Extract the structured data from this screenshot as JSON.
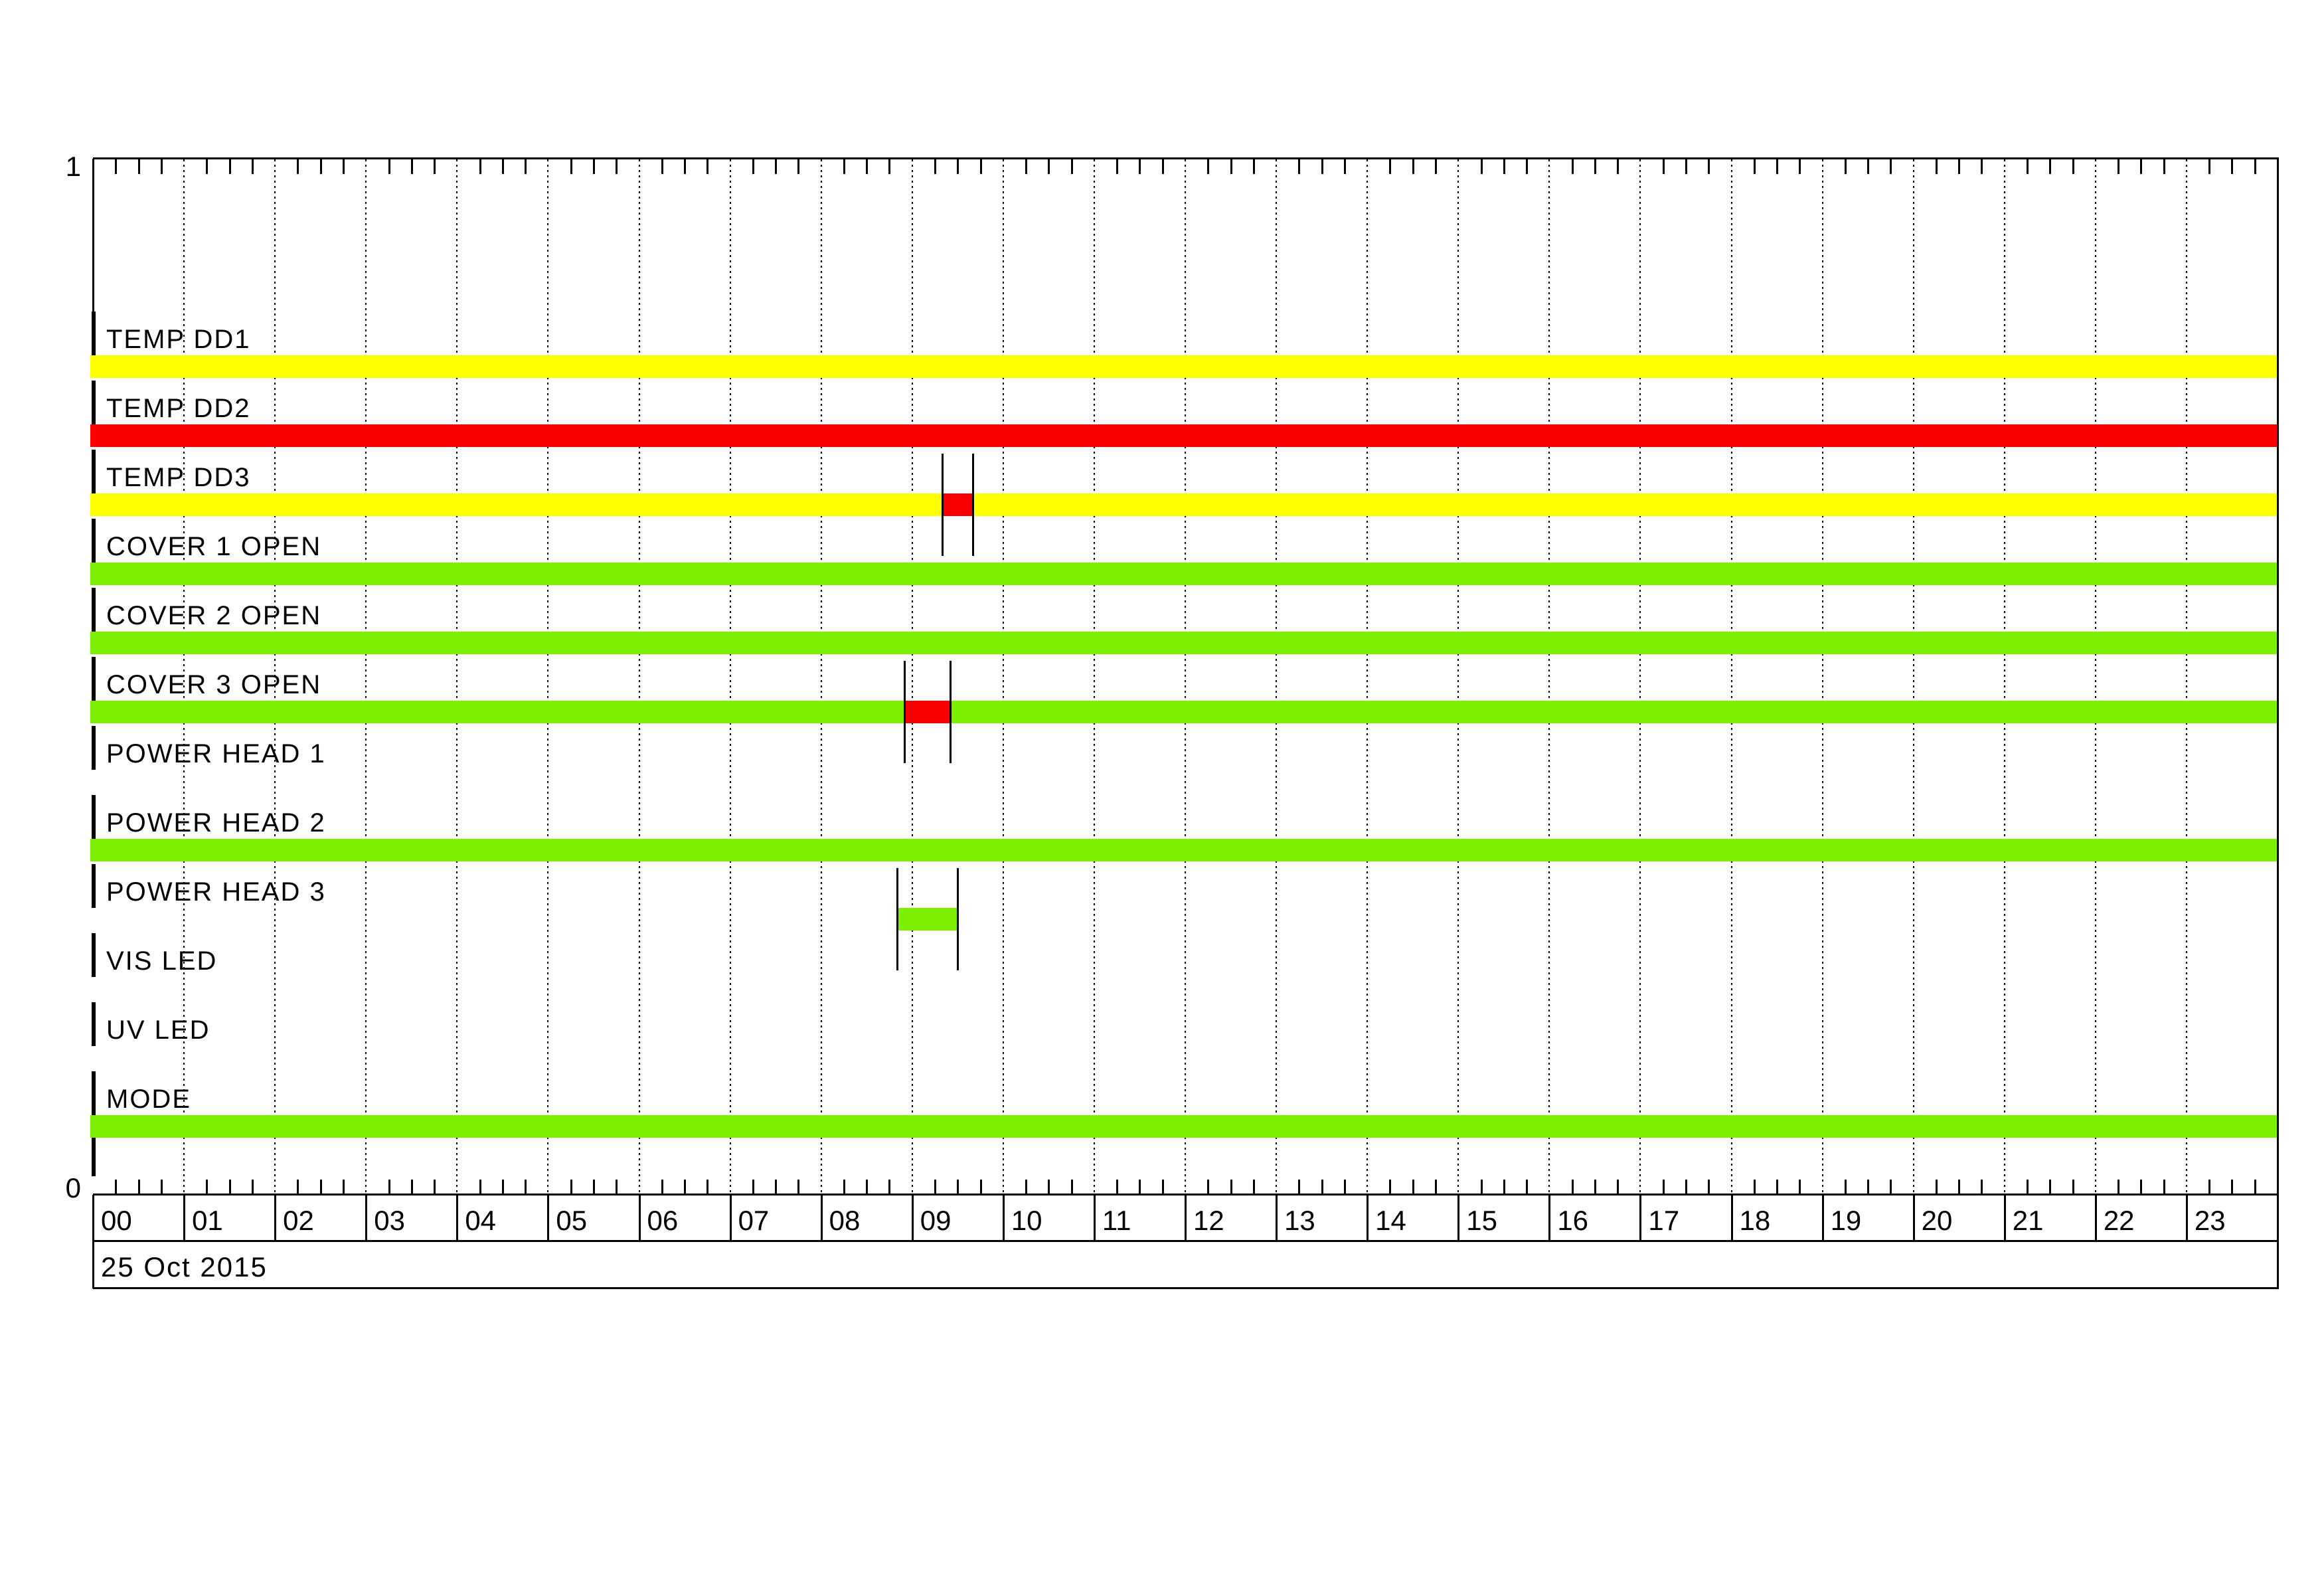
{
  "chart_data": {
    "type": "bar",
    "subtype": "binary-status-timeline",
    "title": "",
    "date_label": "25 Oct 2015",
    "x_axis": {
      "unit": "hour",
      "range": [
        0,
        24
      ],
      "tick_labels": [
        "00",
        "01",
        "02",
        "03",
        "04",
        "05",
        "06",
        "07",
        "08",
        "09",
        "10",
        "11",
        "12",
        "13",
        "14",
        "15",
        "16",
        "17",
        "18",
        "19",
        "20",
        "21",
        "22",
        "23"
      ],
      "minor_tick_minutes": 15,
      "grid": "dotted hourly vertical lines"
    },
    "y_axis": {
      "top_label": "1",
      "bottom_label": "0",
      "ylim": [
        0,
        1
      ]
    },
    "colors": {
      "yellow": "#FFFF00",
      "red": "#FA0000",
      "green": "#7CF000",
      "line": "#000000",
      "background": "#FFFFFF"
    },
    "rows": [
      {
        "label": "TEMP DD1",
        "segments": [
          {
            "start_hour": 0,
            "end_hour": 24,
            "start_time": "00:00",
            "end_time": "24:00",
            "color": "yellow",
            "whiskers": false
          }
        ]
      },
      {
        "label": "TEMP DD2",
        "segments": [
          {
            "start_hour": 0,
            "end_hour": 24,
            "start_time": "00:00",
            "end_time": "24:00",
            "color": "red",
            "whiskers": false
          }
        ]
      },
      {
        "label": "TEMP DD3",
        "segments": [
          {
            "start_hour": 0,
            "end_hour": 24,
            "start_time": "00:00",
            "end_time": "24:00",
            "color": "yellow",
            "whiskers": false
          },
          {
            "start_hour": 9.3333,
            "end_hour": 9.6667,
            "start_time": "09:20",
            "end_time": "09:40",
            "color": "red",
            "whiskers": true
          }
        ]
      },
      {
        "label": "COVER 1 OPEN",
        "segments": [
          {
            "start_hour": 0,
            "end_hour": 24,
            "start_time": "00:00",
            "end_time": "24:00",
            "color": "green",
            "whiskers": false
          }
        ]
      },
      {
        "label": "COVER 2 OPEN",
        "segments": [
          {
            "start_hour": 0,
            "end_hour": 24,
            "start_time": "00:00",
            "end_time": "24:00",
            "color": "green",
            "whiskers": false
          }
        ]
      },
      {
        "label": "COVER 3 OPEN",
        "segments": [
          {
            "start_hour": 0,
            "end_hour": 24,
            "start_time": "00:00",
            "end_time": "24:00",
            "color": "green",
            "whiskers": false
          },
          {
            "start_hour": 8.9167,
            "end_hour": 9.4167,
            "start_time": "08:55",
            "end_time": "09:25",
            "color": "red",
            "whiskers": true
          }
        ]
      },
      {
        "label": "POWER HEAD 1",
        "segments": []
      },
      {
        "label": "POWER HEAD 2",
        "segments": [
          {
            "start_hour": 0,
            "end_hour": 24,
            "start_time": "00:00",
            "end_time": "24:00",
            "color": "green",
            "whiskers": false
          }
        ]
      },
      {
        "label": "POWER HEAD 3",
        "segments": [
          {
            "start_hour": 8.8333,
            "end_hour": 9.5,
            "start_time": "08:50",
            "end_time": "09:30",
            "color": "green",
            "whiskers": true
          }
        ]
      },
      {
        "label": "VIS LED",
        "segments": []
      },
      {
        "label": "UV LED",
        "segments": []
      },
      {
        "label": "MODE",
        "segments": [
          {
            "start_hour": 0,
            "end_hour": 24,
            "start_time": "00:00",
            "end_time": "24:00",
            "color": "green",
            "whiskers": false
          }
        ]
      }
    ]
  }
}
